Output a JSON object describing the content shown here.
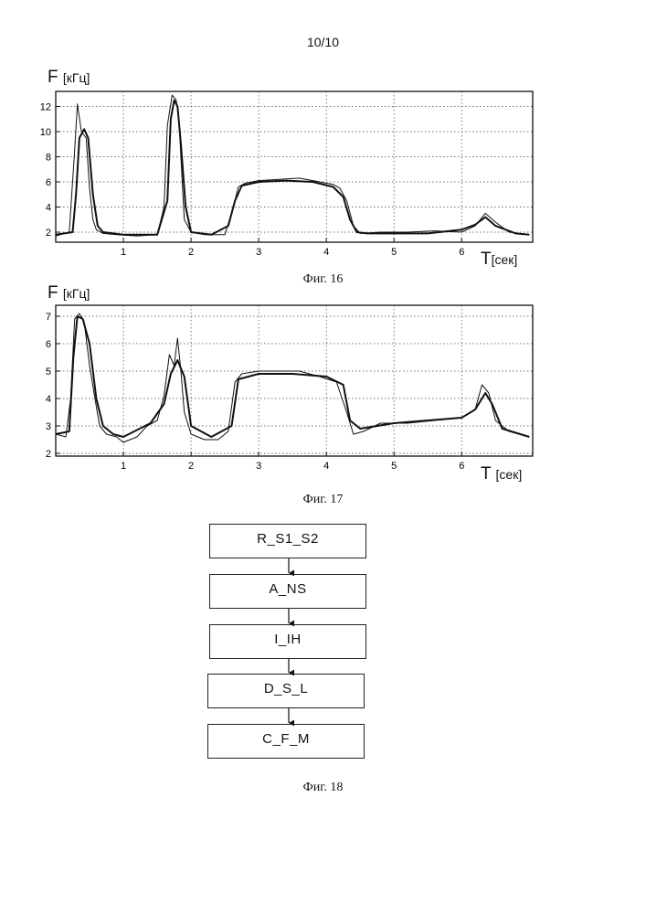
{
  "page_number": "10/10",
  "figures": {
    "fig16": {
      "caption": "Фиг. 16",
      "ylabel": "F",
      "yunit": "[кГц]",
      "xlabel": "T",
      "xunit": "[сек]"
    },
    "fig17": {
      "caption": "Фиг. 17",
      "ylabel": "F",
      "yunit": "[кГц]",
      "xlabel": "T",
      "xunit": "[сек]"
    },
    "fig18": {
      "caption": "Фиг. 18",
      "blocks": [
        "R_S1_S2",
        "A_NS",
        "I_IH",
        "D_S_L",
        "C_F_M"
      ]
    }
  },
  "chart_data": [
    {
      "type": "line",
      "title": "",
      "xlabel": "T [сек]",
      "ylabel": "F [кГц]",
      "xlim": [
        0,
        7.05
      ],
      "ylim": [
        1.2,
        13.2
      ],
      "xticks": [
        1,
        2,
        3,
        4,
        5,
        6
      ],
      "yticks": [
        2,
        4,
        6,
        8,
        10,
        12
      ],
      "grid": true,
      "series": [
        {
          "x": [
            0.0,
            0.2,
            0.28,
            0.32,
            0.38,
            0.45,
            0.5,
            0.55,
            0.6,
            0.7,
            0.9,
            1.2,
            1.5,
            1.6,
            1.65,
            1.72,
            1.78,
            1.82,
            1.86,
            1.9,
            2.0,
            2.2,
            2.5,
            2.6,
            2.7,
            2.8,
            3.0,
            3.3,
            3.6,
            3.9,
            4.1,
            4.2,
            4.3,
            4.4,
            4.5,
            4.8,
            5.2,
            5.6,
            6.0,
            6.2,
            6.35,
            6.5,
            6.7,
            7.0
          ],
          "y": [
            1.7,
            2.0,
            8.5,
            12.2,
            10.0,
            9.5,
            5.5,
            3.0,
            2.2,
            1.9,
            1.8,
            1.7,
            1.8,
            4.0,
            10.5,
            12.9,
            12.5,
            11.0,
            7.0,
            3.0,
            2.0,
            1.8,
            1.8,
            3.5,
            5.6,
            5.9,
            6.1,
            6.2,
            6.3,
            6.0,
            5.8,
            5.5,
            4.5,
            2.5,
            1.9,
            2.0,
            2.0,
            2.1,
            2.0,
            2.5,
            3.5,
            2.8,
            2.0,
            1.8
          ]
        },
        {
          "x": [
            0.0,
            0.25,
            0.3,
            0.35,
            0.42,
            0.48,
            0.55,
            0.62,
            0.7,
            1.0,
            1.5,
            1.65,
            1.7,
            1.75,
            1.8,
            1.85,
            1.92,
            2.0,
            2.3,
            2.55,
            2.65,
            2.75,
            3.0,
            3.4,
            3.8,
            4.1,
            4.25,
            4.35,
            4.45,
            4.6,
            5.0,
            5.5,
            6.0,
            6.2,
            6.35,
            6.5,
            6.8,
            7.0
          ],
          "y": [
            1.8,
            2.0,
            5.0,
            9.5,
            10.2,
            9.5,
            5.0,
            2.5,
            2.0,
            1.8,
            1.8,
            4.5,
            11.0,
            12.5,
            12.0,
            9.0,
            4.0,
            2.0,
            1.8,
            2.5,
            4.5,
            5.7,
            6.0,
            6.1,
            6.0,
            5.6,
            4.8,
            3.0,
            2.0,
            1.9,
            1.9,
            1.9,
            2.2,
            2.6,
            3.2,
            2.5,
            1.9,
            1.8
          ]
        }
      ]
    },
    {
      "type": "line",
      "title": "",
      "xlabel": "T [сек]",
      "ylabel": "F [кГц]",
      "xlim": [
        0,
        7.05
      ],
      "ylim": [
        1.9,
        7.4
      ],
      "xticks": [
        1,
        2,
        3,
        4,
        5,
        6
      ],
      "yticks": [
        2,
        3,
        4,
        5,
        6,
        7
      ],
      "grid": true,
      "series": [
        {
          "x": [
            0.0,
            0.15,
            0.22,
            0.28,
            0.35,
            0.42,
            0.5,
            0.58,
            0.65,
            0.75,
            0.9,
            1.0,
            1.2,
            1.35,
            1.5,
            1.6,
            1.68,
            1.75,
            1.8,
            1.85,
            1.9,
            2.0,
            2.2,
            2.4,
            2.55,
            2.65,
            2.75,
            3.0,
            3.3,
            3.6,
            3.9,
            4.15,
            4.3,
            4.4,
            4.55,
            4.8,
            5.2,
            5.6,
            6.0,
            6.2,
            6.3,
            6.4,
            6.5,
            6.7,
            7.0
          ],
          "y": [
            2.7,
            2.6,
            4.0,
            6.9,
            7.1,
            6.8,
            5.2,
            4.0,
            3.0,
            2.7,
            2.6,
            2.4,
            2.6,
            3.0,
            3.2,
            4.1,
            5.6,
            5.2,
            6.2,
            5.0,
            3.5,
            2.7,
            2.5,
            2.5,
            2.8,
            4.6,
            4.9,
            5.0,
            5.0,
            5.0,
            4.8,
            4.6,
            3.5,
            2.7,
            2.8,
            3.1,
            3.1,
            3.2,
            3.3,
            3.6,
            4.5,
            4.2,
            3.2,
            2.8,
            2.6
          ]
        },
        {
          "x": [
            0.0,
            0.2,
            0.26,
            0.32,
            0.4,
            0.5,
            0.6,
            0.7,
            0.85,
            1.0,
            1.4,
            1.6,
            1.7,
            1.8,
            1.9,
            2.0,
            2.3,
            2.6,
            2.7,
            3.0,
            3.5,
            4.0,
            4.25,
            4.35,
            4.5,
            5.0,
            5.5,
            6.0,
            6.2,
            6.35,
            6.45,
            6.6,
            7.0
          ],
          "y": [
            2.7,
            2.8,
            5.5,
            7.0,
            6.9,
            6.0,
            4.0,
            3.0,
            2.7,
            2.6,
            3.1,
            3.8,
            4.9,
            5.4,
            4.8,
            3.0,
            2.6,
            3.0,
            4.7,
            4.9,
            4.9,
            4.8,
            4.5,
            3.2,
            2.9,
            3.1,
            3.2,
            3.3,
            3.6,
            4.2,
            3.8,
            2.9,
            2.6
          ]
        }
      ]
    }
  ]
}
